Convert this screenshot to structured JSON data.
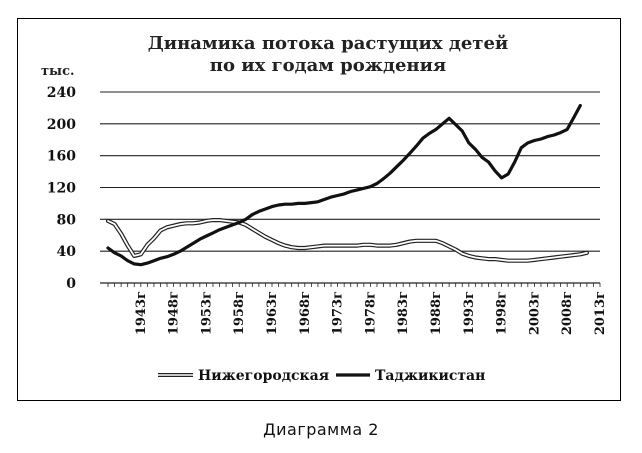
{
  "caption": "Диаграмма 2",
  "chart_data": {
    "type": "line",
    "title_lines": [
      "Динамика  потока растущих детей",
      "по их годам рождения"
    ],
    "ylabel": "тыс.",
    "ylim": [
      0,
      240
    ],
    "yticks": [
      "0",
      "40",
      "80",
      "120",
      "160",
      "200",
      "240"
    ],
    "xlim": [
      1938,
      2013
    ],
    "xticks": [
      "1943г",
      "1948г",
      "1953г",
      "1958г",
      "1963г",
      "1968г",
      "1973г",
      "1978г",
      "1983г",
      "1988г",
      "1993г",
      "1998г",
      "2003г",
      "2008г",
      "2013г"
    ],
    "grid": "horizontal",
    "legend_position": "bottom",
    "series": [
      {
        "name": "Нижегородская",
        "style": "outline",
        "x": [
          1938,
          1939,
          1940,
          1941,
          1942,
          1943,
          1944,
          1945,
          1946,
          1947,
          1948,
          1949,
          1950,
          1951,
          1952,
          1953,
          1954,
          1955,
          1956,
          1957,
          1958,
          1959,
          1960,
          1961,
          1962,
          1963,
          1964,
          1965,
          1966,
          1967,
          1968,
          1969,
          1970,
          1971,
          1972,
          1973,
          1974,
          1975,
          1976,
          1977,
          1978,
          1979,
          1980,
          1981,
          1982,
          1983,
          1984,
          1985,
          1986,
          1987,
          1988,
          1989,
          1990,
          1991,
          1992,
          1993,
          1994,
          1995,
          1996,
          1997,
          1998,
          1999,
          2000,
          2001,
          2002,
          2003,
          2004,
          2005,
          2006,
          2007,
          2008,
          2009,
          2010,
          2011
        ],
        "values": [
          78,
          74,
          62,
          47,
          34,
          36,
          48,
          56,
          66,
          70,
          72,
          74,
          75,
          75,
          76,
          78,
          79,
          79,
          78,
          77,
          76,
          73,
          68,
          63,
          58,
          54,
          50,
          47,
          45,
          44,
          44,
          45,
          46,
          47,
          47,
          47,
          47,
          47,
          47,
          48,
          48,
          47,
          47,
          47,
          48,
          50,
          52,
          53,
          53,
          53,
          53,
          50,
          46,
          42,
          37,
          34,
          32,
          31,
          30,
          30,
          29,
          28,
          28,
          28,
          28,
          29,
          30,
          31,
          32,
          33,
          34,
          35,
          36,
          38
        ]
      },
      {
        "name": "Таджикистан",
        "style": "solid",
        "x": [
          1938,
          1939,
          1940,
          1941,
          1942,
          1943,
          1944,
          1945,
          1946,
          1947,
          1948,
          1949,
          1950,
          1951,
          1952,
          1953,
          1954,
          1955,
          1956,
          1957,
          1958,
          1959,
          1960,
          1961,
          1962,
          1963,
          1964,
          1965,
          1966,
          1967,
          1968,
          1969,
          1970,
          1971,
          1972,
          1973,
          1974,
          1975,
          1976,
          1977,
          1978,
          1979,
          1980,
          1981,
          1982,
          1983,
          1984,
          1985,
          1986,
          1987,
          1988,
          1989,
          1990,
          1991,
          1992,
          1993,
          1994,
          1995,
          1996,
          1997,
          1998,
          1999,
          2000,
          2001,
          2002,
          2003,
          2004,
          2005,
          2006,
          2007,
          2008,
          2009,
          2010
        ],
        "values": [
          44,
          38,
          34,
          28,
          24,
          23,
          25,
          28,
          31,
          33,
          36,
          40,
          45,
          50,
          55,
          59,
          63,
          67,
          70,
          73,
          76,
          80,
          86,
          90,
          93,
          96,
          98,
          99,
          99,
          100,
          100,
          101,
          102,
          105,
          108,
          110,
          112,
          115,
          117,
          119,
          121,
          125,
          131,
          138,
          146,
          154,
          163,
          172,
          182,
          188,
          193,
          200,
          207,
          199,
          191,
          176,
          168,
          158,
          152,
          141,
          132,
          137,
          152,
          170,
          176,
          179,
          181,
          184,
          186,
          189,
          193,
          208,
          223
        ]
      }
    ]
  }
}
